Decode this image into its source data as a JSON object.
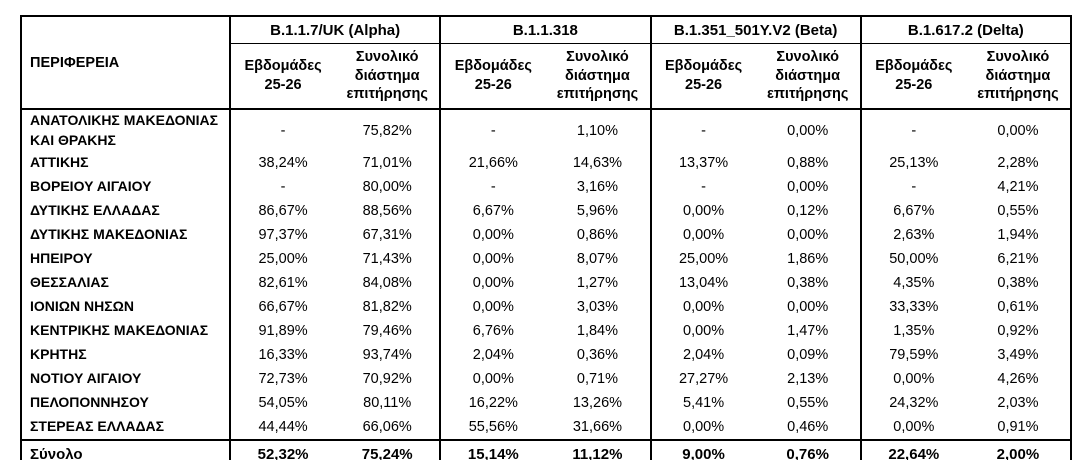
{
  "table": {
    "region_header": "ΠΕΡΙΦΕΡΕΙΑ",
    "variant_groups": [
      {
        "name": "B.1.1.7/UK (Alpha)"
      },
      {
        "name": "B.1.1.318"
      },
      {
        "name": "B.1.351_501Y.V2 (Beta)"
      },
      {
        "name": "B.1.617.2 (Delta)"
      }
    ],
    "subheaders": {
      "weeks": "Εβδομάδες\n25-26",
      "total": "Συνολικό\nδιάστημα\nεπιτήρησης"
    },
    "rows": [
      {
        "region": "ΑΝΑΤΟΛΙΚΗΣ ΜΑΚΕΔΟΝΙΑΣ\nΚΑΙ ΘΡΑΚΗΣ",
        "values": [
          "-",
          "75,82%",
          "-",
          "1,10%",
          "-",
          "0,00%",
          "-",
          "0,00%"
        ]
      },
      {
        "region": "ΑΤΤΙΚΗΣ",
        "values": [
          "38,24%",
          "71,01%",
          "21,66%",
          "14,63%",
          "13,37%",
          "0,88%",
          "25,13%",
          "2,28%"
        ]
      },
      {
        "region": "ΒΟΡΕΙΟΥ ΑΙΓΑΙΟΥ",
        "values": [
          "-",
          "80,00%",
          "-",
          "3,16%",
          "-",
          "0,00%",
          "-",
          "4,21%"
        ]
      },
      {
        "region": "ΔΥΤΙΚΗΣ ΕΛΛΑΔΑΣ",
        "values": [
          "86,67%",
          "88,56%",
          "6,67%",
          "5,96%",
          "0,00%",
          "0,12%",
          "6,67%",
          "0,55%"
        ]
      },
      {
        "region": "ΔΥΤΙΚΗΣ ΜΑΚΕΔΟΝΙΑΣ",
        "values": [
          "97,37%",
          "67,31%",
          "0,00%",
          "0,86%",
          "0,00%",
          "0,00%",
          "2,63%",
          "1,94%"
        ]
      },
      {
        "region": "ΗΠΕΙΡΟΥ",
        "values": [
          "25,00%",
          "71,43%",
          "0,00%",
          "8,07%",
          "25,00%",
          "1,86%",
          "50,00%",
          "6,21%"
        ]
      },
      {
        "region": "ΘΕΣΣΑΛΙΑΣ",
        "values": [
          "82,61%",
          "84,08%",
          "0,00%",
          "1,27%",
          "13,04%",
          "0,38%",
          "4,35%",
          "0,38%"
        ]
      },
      {
        "region": "ΙΟΝΙΩΝ ΝΗΣΩΝ",
        "values": [
          "66,67%",
          "81,82%",
          "0,00%",
          "3,03%",
          "0,00%",
          "0,00%",
          "33,33%",
          "0,61%"
        ]
      },
      {
        "region": "ΚΕΝΤΡΙΚΗΣ ΜΑΚΕΔΟΝΙΑΣ",
        "values": [
          "91,89%",
          "79,46%",
          "6,76%",
          "1,84%",
          "0,00%",
          "1,47%",
          "1,35%",
          "0,92%"
        ]
      },
      {
        "region": "ΚΡΗΤΗΣ",
        "values": [
          "16,33%",
          "93,74%",
          "2,04%",
          "0,36%",
          "2,04%",
          "0,09%",
          "79,59%",
          "3,49%"
        ]
      },
      {
        "region": "ΝΟΤΙΟΥ ΑΙΓΑΙΟΥ",
        "values": [
          "72,73%",
          "70,92%",
          "0,00%",
          "0,71%",
          "27,27%",
          "2,13%",
          "0,00%",
          "4,26%"
        ]
      },
      {
        "region": "ΠΕΛΟΠΟΝΝΗΣΟΥ",
        "values": [
          "54,05%",
          "80,11%",
          "16,22%",
          "13,26%",
          "5,41%",
          "0,55%",
          "24,32%",
          "2,03%"
        ]
      },
      {
        "region": "ΣΤΕΡΕΑΣ ΕΛΛΑΔΑΣ",
        "values": [
          "44,44%",
          "66,06%",
          "55,56%",
          "31,66%",
          "0,00%",
          "0,46%",
          "0,00%",
          "0,91%"
        ]
      }
    ],
    "total_row": {
      "label": "Σύνολο",
      "values": [
        "52,32%",
        "75,24%",
        "15,14%",
        "11,12%",
        "9,00%",
        "0,76%",
        "22,64%",
        "2,00%"
      ]
    }
  }
}
